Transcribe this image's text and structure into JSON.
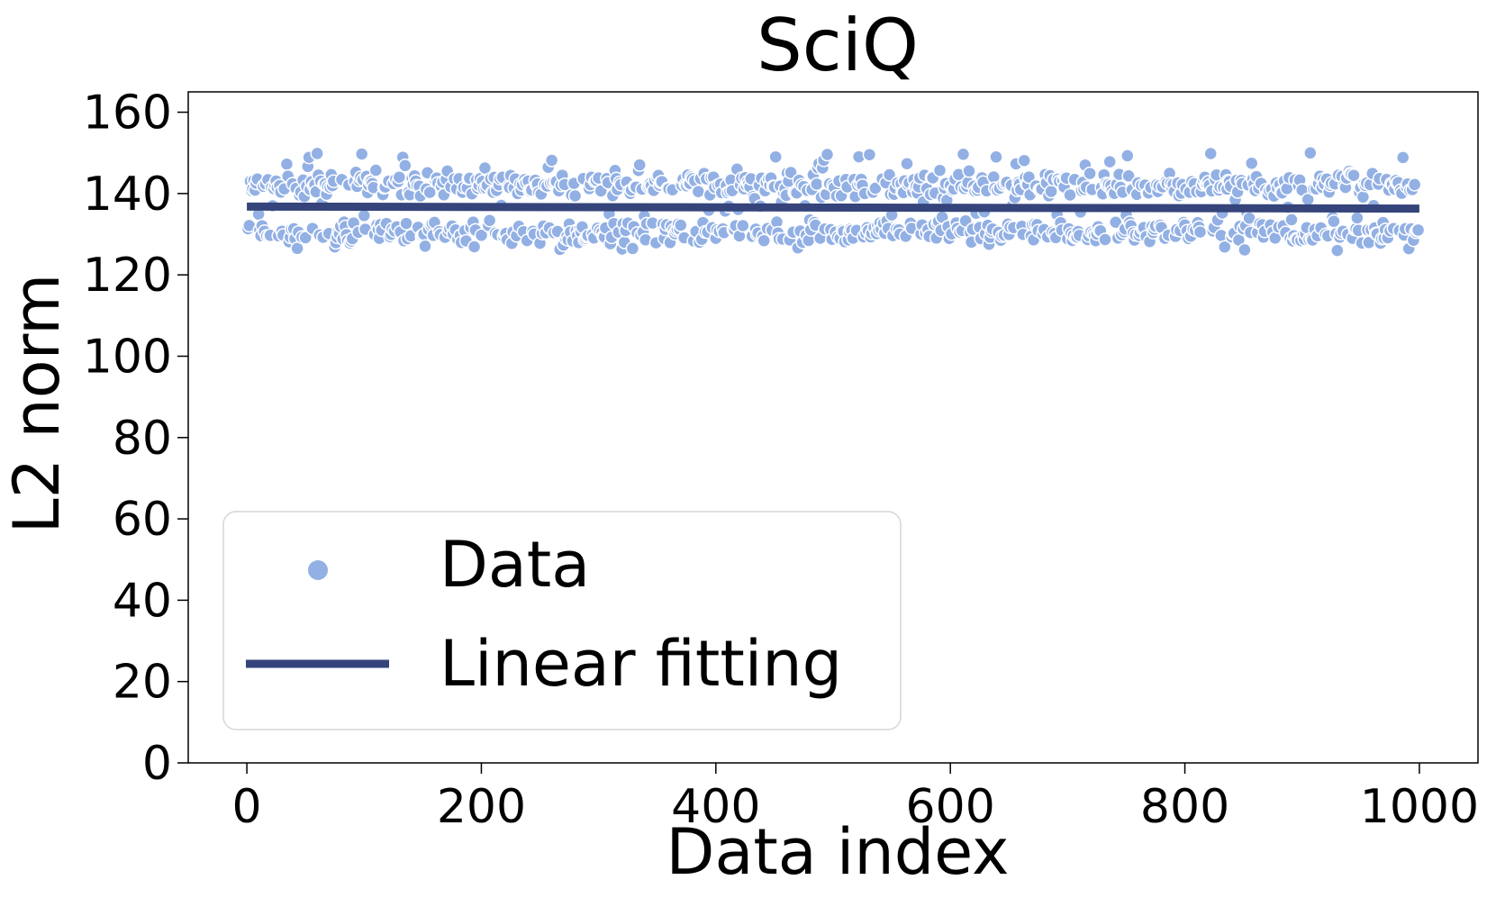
{
  "chart_data": {
    "type": "scatter",
    "title": "SciQ",
    "xlabel": "Data index",
    "ylabel": "L2 norm",
    "xlim": [
      -50,
      1050
    ],
    "ylim": [
      0,
      165
    ],
    "x_ticks": [
      0,
      200,
      400,
      600,
      800,
      1000
    ],
    "y_ticks": [
      0,
      20,
      40,
      60,
      80,
      100,
      120,
      140,
      160
    ],
    "grid": false,
    "legend_position": "lower-left",
    "colors": {
      "data": "#92b0e4",
      "fit": "#35447a"
    },
    "series": [
      {
        "name": "Data",
        "kind": "scatter",
        "n_points": 1000,
        "x_range": [
          0,
          999
        ],
        "y_range": [
          126,
          150
        ],
        "y_clusters": [
          130.5,
          142.0
        ]
      },
      {
        "name": "Linear fitting",
        "kind": "line",
        "x": [
          0,
          1000
        ],
        "y": [
          136.8,
          136.3
        ]
      }
    ]
  }
}
